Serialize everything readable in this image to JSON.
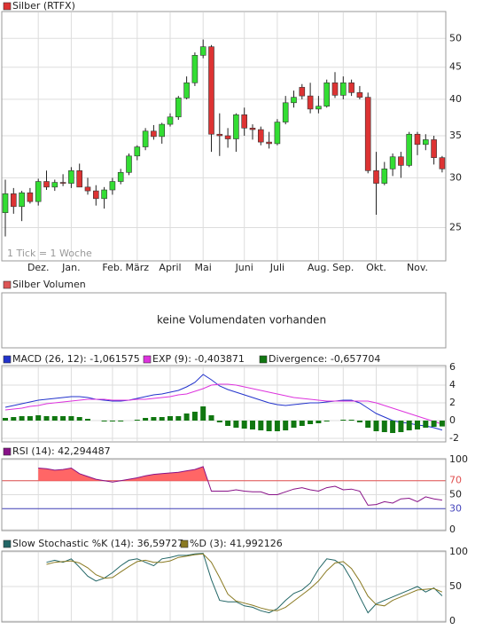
{
  "chart_data": [
    {
      "type": "candlestick",
      "title": "Silber (RTFX)",
      "note": "1 Tick = 1 Woche",
      "log": true,
      "grid": true,
      "up_color": "#33dd33",
      "down_color": "#dd3333",
      "header_color": "#dd3333",
      "categories": [
        null,
        null,
        null,
        null,
        "Dez.",
        null,
        null,
        null,
        "Jan.",
        null,
        null,
        null,
        null,
        "Feb.",
        null,
        null,
        "März",
        null,
        null,
        null,
        "April",
        null,
        null,
        null,
        "Mai",
        null,
        null,
        null,
        null,
        "Juni",
        null,
        null,
        null,
        "Juli",
        null,
        null,
        null,
        null,
        "Aug.",
        null,
        null,
        "Sep.",
        null,
        null,
        null,
        "Okt.",
        null,
        null,
        null,
        null,
        "Nov.",
        null,
        null,
        null
      ],
      "open": [
        26.4,
        28.3,
        27.0,
        28.4,
        27.5,
        29.6,
        29.0,
        29.5,
        29.4,
        30.8,
        29.0,
        28.6,
        27.8,
        28.7,
        29.6,
        30.6,
        32.5,
        33.6,
        35.6,
        34.9,
        36.5,
        37.5,
        40.2,
        42.5,
        47.0,
        48.5,
        35.2,
        35.0,
        34.6,
        37.8,
        36.0,
        35.8,
        34.2,
        34.0,
        36.8,
        39.5,
        41.8,
        40.5,
        38.6,
        39.0,
        42.5,
        40.6,
        42.5,
        41.0,
        40.3,
        30.8,
        29.4,
        31.0,
        32.4,
        31.4,
        35.2,
        33.9,
        34.5,
        32.3
      ],
      "high": [
        29.8,
        28.9,
        28.6,
        28.9,
        29.9,
        30.8,
        29.8,
        30.4,
        31.2,
        31.6,
        30.0,
        29.2,
        29.0,
        30.0,
        31.0,
        32.8,
        33.8,
        36.0,
        36.4,
        36.7,
        38.0,
        40.5,
        43.5,
        47.5,
        49.8,
        48.8,
        38.0,
        36.0,
        38.0,
        38.8,
        36.5,
        36.2,
        35.5,
        37.2,
        40.5,
        41.3,
        42.3,
        42.5,
        40.5,
        43.0,
        44.2,
        43.5,
        43.0,
        42.0,
        41.0,
        33.0,
        31.8,
        32.8,
        33.0,
        35.5,
        35.5,
        35.2,
        35.0,
        32.5
      ],
      "low": [
        24.2,
        26.3,
        25.6,
        27.3,
        27.1,
        28.7,
        28.6,
        29.1,
        28.9,
        29.0,
        28.2,
        27.1,
        26.8,
        28.2,
        29.3,
        30.3,
        32.0,
        33.2,
        34.5,
        34.0,
        36.2,
        37.1,
        40.0,
        42.0,
        46.5,
        33.0,
        32.5,
        33.5,
        33.0,
        35.0,
        34.5,
        33.8,
        33.4,
        33.8,
        36.5,
        38.8,
        40.0,
        38.0,
        38.0,
        38.8,
        40.2,
        40.0,
        40.5,
        40.0,
        30.5,
        26.2,
        29.2,
        30.2,
        30.0,
        31.2,
        32.6,
        33.2,
        31.5,
        30.6
      ],
      "close": [
        28.3,
        27.0,
        28.4,
        27.5,
        29.6,
        29.0,
        29.5,
        29.4,
        30.8,
        29.0,
        28.6,
        27.8,
        28.7,
        29.6,
        30.6,
        32.5,
        33.6,
        35.6,
        34.9,
        36.5,
        37.5,
        40.2,
        42.5,
        47.0,
        48.5,
        35.2,
        35.0,
        34.6,
        37.8,
        36.0,
        35.8,
        34.2,
        34.0,
        36.8,
        39.5,
        40.3,
        40.5,
        38.6,
        39.0,
        42.5,
        40.6,
        42.5,
        41.0,
        40.3,
        30.8,
        29.4,
        31.0,
        32.4,
        31.4,
        35.2,
        33.9,
        34.5,
        32.3,
        31.0
      ],
      "ylim": [
        22.2,
        55
      ],
      "yticks": [
        25,
        30,
        35,
        40,
        45,
        50
      ]
    },
    {
      "type": "empty",
      "title": "Silber Volumen",
      "header_color": "#dd5555",
      "message": "keine Volumendaten vorhanden"
    },
    {
      "type": "macd",
      "grid": true,
      "ylim": [
        -2.3,
        6.1
      ],
      "yticks": [
        -2,
        0,
        2,
        4,
        6
      ],
      "series": [
        {
          "name": "MACD (26, 12): -1,061575",
          "color": "#2233cc",
          "kind": "line",
          "values": [
            1.5,
            1.7,
            1.9,
            2.1,
            2.3,
            2.4,
            2.5,
            2.6,
            2.7,
            2.7,
            2.6,
            2.4,
            2.3,
            2.2,
            2.2,
            2.3,
            2.5,
            2.7,
            2.9,
            3.0,
            3.2,
            3.4,
            3.8,
            4.3,
            5.2,
            4.6,
            3.9,
            3.5,
            3.2,
            2.9,
            2.6,
            2.3,
            2.0,
            1.8,
            1.7,
            1.8,
            1.9,
            2.0,
            2.0,
            2.1,
            2.2,
            2.3,
            2.3,
            2.0,
            1.4,
            0.8,
            0.4,
            0.0,
            -0.2,
            -0.3,
            -0.5,
            -0.6,
            -0.8,
            -1.06
          ]
        },
        {
          "name": "EXP (9): -0,403871",
          "color": "#dd33dd",
          "kind": "line",
          "values": [
            1.2,
            1.3,
            1.4,
            1.6,
            1.7,
            1.9,
            2.0,
            2.1,
            2.2,
            2.3,
            2.4,
            2.4,
            2.4,
            2.3,
            2.3,
            2.3,
            2.4,
            2.4,
            2.5,
            2.6,
            2.7,
            2.9,
            3.0,
            3.3,
            3.6,
            4.0,
            4.1,
            4.1,
            4.0,
            3.8,
            3.6,
            3.4,
            3.2,
            3.0,
            2.8,
            2.6,
            2.5,
            2.4,
            2.3,
            2.2,
            2.2,
            2.2,
            2.2,
            2.2,
            2.2,
            2.0,
            1.7,
            1.4,
            1.1,
            0.8,
            0.5,
            0.2,
            -0.1,
            -0.4
          ]
        },
        {
          "name": "Divergence: -0,657704",
          "color": "#117711",
          "kind": "bar",
          "values": [
            0.3,
            0.4,
            0.5,
            0.5,
            0.6,
            0.5,
            0.5,
            0.5,
            0.5,
            0.4,
            0.2,
            0.0,
            -0.1,
            -0.1,
            -0.1,
            0.0,
            0.1,
            0.3,
            0.4,
            0.4,
            0.5,
            0.5,
            0.8,
            1.0,
            1.6,
            0.6,
            -0.2,
            -0.6,
            -0.8,
            -0.9,
            -1.0,
            -1.1,
            -1.2,
            -1.2,
            -1.1,
            -0.8,
            -0.6,
            -0.4,
            -0.3,
            -0.1,
            0.0,
            0.1,
            0.1,
            -0.2,
            -0.8,
            -1.2,
            -1.3,
            -1.4,
            -1.3,
            -1.1,
            -1.0,
            -0.8,
            -0.7,
            -0.66
          ]
        }
      ]
    },
    {
      "type": "rsi",
      "grid": true,
      "ylim": [
        0,
        100
      ],
      "yticks": [
        0,
        30,
        50,
        70,
        100
      ],
      "hlines": [
        {
          "value": 70,
          "color": "#e05050"
        },
        {
          "value": 30,
          "color": "#4444bb"
        }
      ],
      "fill_above": 70,
      "fill_color": "#ff6666",
      "series": [
        {
          "name": "RSI (14): 42,294487",
          "color": "#881188",
          "kind": "line",
          "values": [
            null,
            null,
            null,
            null,
            88,
            87,
            85,
            86,
            88,
            80,
            76,
            72,
            70,
            68,
            70,
            72,
            74,
            77,
            79,
            80,
            81,
            82,
            84,
            86,
            90,
            55,
            55,
            55,
            57,
            55,
            54,
            54,
            50,
            50,
            54,
            58,
            60,
            57,
            55,
            60,
            62,
            57,
            58,
            55,
            35,
            36,
            40,
            38,
            44,
            45,
            40,
            47,
            44,
            42.3
          ]
        }
      ]
    },
    {
      "type": "stochastic",
      "grid": true,
      "ylim": [
        0,
        100
      ],
      "yticks": [
        0,
        50,
        100
      ],
      "series": [
        {
          "name": "Slow Stochastic %K (14): 36,59727",
          "color": "#226666",
          "kind": "line",
          "values": [
            null,
            null,
            null,
            null,
            null,
            85,
            88,
            85,
            90,
            78,
            65,
            58,
            62,
            70,
            80,
            88,
            90,
            85,
            80,
            90,
            92,
            95,
            95,
            97,
            98,
            60,
            30,
            28,
            28,
            22,
            20,
            15,
            12,
            18,
            30,
            40,
            45,
            55,
            75,
            90,
            88,
            80,
            60,
            35,
            12,
            25,
            30,
            35,
            40,
            45,
            50,
            42,
            48,
            36.6
          ]
        },
        {
          "name": "%D (3): 41,992126",
          "color": "#8a7a22",
          "kind": "line",
          "values": [
            null,
            null,
            null,
            null,
            null,
            82,
            85,
            86,
            87,
            84,
            77,
            67,
            62,
            63,
            71,
            79,
            86,
            88,
            85,
            85,
            87,
            92,
            94,
            96,
            97,
            85,
            63,
            39,
            29,
            26,
            23,
            19,
            16,
            15,
            20,
            29,
            38,
            47,
            58,
            73,
            84,
            86,
            76,
            58,
            36,
            24,
            22,
            30,
            35,
            40,
            45,
            46,
            47,
            42.0
          ]
        }
      ]
    }
  ]
}
